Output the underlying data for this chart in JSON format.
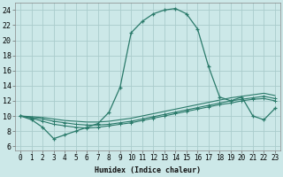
{
  "bg_color": "#cce8e8",
  "grid_color": "#aacccc",
  "line_color": "#2a7a6a",
  "xlabel": "Humidex (Indice chaleur)",
  "xlim": [
    -0.5,
    23.5
  ],
  "ylim": [
    5.5,
    25.0
  ],
  "xticks": [
    0,
    1,
    2,
    3,
    4,
    5,
    6,
    7,
    8,
    9,
    10,
    11,
    12,
    13,
    14,
    15,
    16,
    17,
    18,
    19,
    20,
    21,
    22,
    23
  ],
  "yticks": [
    6,
    8,
    10,
    12,
    14,
    16,
    18,
    20,
    22,
    24
  ],
  "curve1_x": [
    0,
    1,
    2,
    3,
    4,
    5,
    6,
    7,
    8,
    9,
    10,
    11,
    12,
    13,
    14,
    15,
    16,
    17,
    18,
    19,
    20,
    21,
    22,
    23
  ],
  "curve1_y": [
    10,
    9.5,
    8.5,
    7.0,
    7.5,
    8.0,
    8.5,
    9.0,
    10.5,
    13.8,
    21.0,
    22.5,
    23.5,
    24.0,
    24.2,
    23.5,
    21.5,
    16.5,
    12.5,
    12.0,
    12.5,
    10.0,
    9.5,
    11.0
  ],
  "curve2_x": [
    0,
    1,
    2,
    3,
    4,
    5,
    6,
    7,
    8,
    9,
    10,
    11,
    12,
    13,
    14,
    15,
    16,
    17,
    18,
    19,
    20,
    21,
    22,
    23
  ],
  "curve2_y": [
    10,
    9.7,
    9.3,
    8.9,
    8.7,
    8.5,
    8.4,
    8.5,
    8.7,
    8.9,
    9.1,
    9.4,
    9.7,
    10.0,
    10.3,
    10.6,
    10.9,
    11.2,
    11.5,
    11.7,
    12.0,
    12.2,
    12.3,
    12.0
  ],
  "curve3_x": [
    0,
    1,
    2,
    3,
    4,
    5,
    6,
    7,
    8,
    9,
    10,
    11,
    12,
    13,
    14,
    15,
    16,
    17,
    18,
    19,
    20,
    21,
    22,
    23
  ],
  "curve3_y": [
    10,
    9.8,
    9.6,
    9.3,
    9.1,
    8.9,
    8.8,
    8.8,
    8.9,
    9.1,
    9.3,
    9.6,
    9.9,
    10.2,
    10.5,
    10.8,
    11.1,
    11.4,
    11.7,
    12.0,
    12.2,
    12.4,
    12.6,
    12.3
  ],
  "curve4_x": [
    0,
    1,
    2,
    3,
    4,
    5,
    6,
    7,
    8,
    9,
    10,
    11,
    12,
    13,
    14,
    15,
    16,
    17,
    18,
    19,
    20,
    21,
    22,
    23
  ],
  "curve4_y": [
    10,
    9.9,
    9.8,
    9.6,
    9.4,
    9.3,
    9.2,
    9.2,
    9.3,
    9.5,
    9.7,
    10.0,
    10.3,
    10.6,
    10.9,
    11.2,
    11.5,
    11.8,
    12.1,
    12.4,
    12.6,
    12.8,
    13.0,
    12.7
  ]
}
